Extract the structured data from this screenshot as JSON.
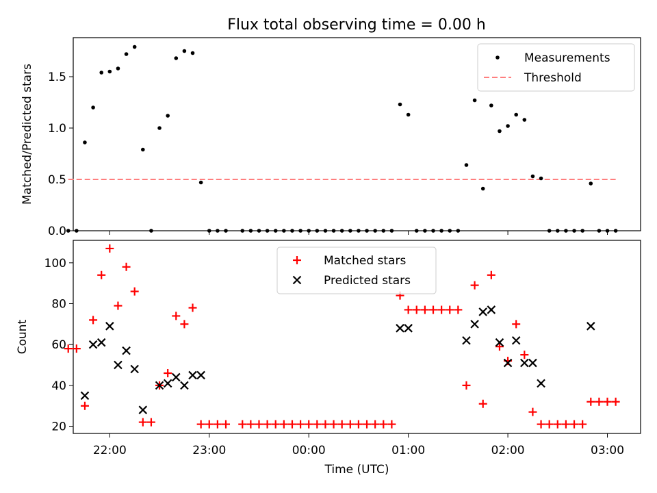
{
  "figure": {
    "title": "Flux total observing time = 0.00 h"
  },
  "chart_data": [
    {
      "type": "scatter",
      "panel": "top",
      "xlabel": "",
      "ylabel": "Matched/Predicted stars",
      "x_unit": "time (UTC)",
      "xlim": [
        "21:38",
        "03:20"
      ],
      "ylim": [
        0,
        1.88
      ],
      "yticks": [
        0.0,
        0.5,
        1.0,
        1.5
      ],
      "ytick_labels": [
        "0.0",
        "0.5",
        "1.0",
        "1.5"
      ],
      "xticks": [
        "22:00",
        "23:00",
        "00:00",
        "01:00",
        "02:00",
        "03:00"
      ],
      "grid": false,
      "legend": "top-right",
      "colors": {
        "measurements": "#000000",
        "threshold": "#ff7f7f"
      },
      "series": [
        {
          "name": "Measurements",
          "style": "dot",
          "points": [
            [
              "21:35",
              0.0
            ],
            [
              "21:40",
              0.0
            ],
            [
              "21:45",
              0.86
            ],
            [
              "21:50",
              1.2
            ],
            [
              "21:55",
              1.54
            ],
            [
              "22:00",
              1.55
            ],
            [
              "22:05",
              1.58
            ],
            [
              "22:10",
              1.72
            ],
            [
              "22:15",
              1.79
            ],
            [
              "22:20",
              0.79
            ],
            [
              "22:25",
              0.0
            ],
            [
              "22:30",
              1.0
            ],
            [
              "22:35",
              1.12
            ],
            [
              "22:40",
              1.68
            ],
            [
              "22:45",
              1.75
            ],
            [
              "22:50",
              1.73
            ],
            [
              "22:55",
              0.47
            ],
            [
              "23:00",
              0.0
            ],
            [
              "23:05",
              0.0
            ],
            [
              "23:10",
              0.0
            ],
            [
              "23:20",
              0.0
            ],
            [
              "23:25",
              0.0
            ],
            [
              "23:30",
              0.0
            ],
            [
              "23:35",
              0.0
            ],
            [
              "23:40",
              0.0
            ],
            [
              "23:45",
              0.0
            ],
            [
              "23:50",
              0.0
            ],
            [
              "23:55",
              0.0
            ],
            [
              "00:00",
              0.0
            ],
            [
              "00:05",
              0.0
            ],
            [
              "00:10",
              0.0
            ],
            [
              "00:15",
              0.0
            ],
            [
              "00:20",
              0.0
            ],
            [
              "00:25",
              0.0
            ],
            [
              "00:30",
              0.0
            ],
            [
              "00:35",
              0.0
            ],
            [
              "00:40",
              0.0
            ],
            [
              "00:45",
              0.0
            ],
            [
              "00:50",
              0.0
            ],
            [
              "00:55",
              1.23
            ],
            [
              "01:00",
              1.13
            ],
            [
              "01:05",
              0.0
            ],
            [
              "01:10",
              0.0
            ],
            [
              "01:15",
              0.0
            ],
            [
              "01:20",
              0.0
            ],
            [
              "01:25",
              0.0
            ],
            [
              "01:30",
              0.0
            ],
            [
              "01:35",
              0.64
            ],
            [
              "01:40",
              1.27
            ],
            [
              "01:45",
              0.41
            ],
            [
              "01:50",
              1.22
            ],
            [
              "01:55",
              0.97
            ],
            [
              "02:00",
              1.02
            ],
            [
              "02:05",
              1.13
            ],
            [
              "02:10",
              1.08
            ],
            [
              "02:15",
              0.53
            ],
            [
              "02:20",
              0.51
            ],
            [
              "02:25",
              0.0
            ],
            [
              "02:30",
              0.0
            ],
            [
              "02:35",
              0.0
            ],
            [
              "02:40",
              0.0
            ],
            [
              "02:45",
              0.0
            ],
            [
              "02:50",
              0.46
            ],
            [
              "02:55",
              0.0
            ],
            [
              "03:00",
              0.0
            ],
            [
              "03:05",
              0.0
            ]
          ]
        },
        {
          "name": "Threshold",
          "style": "dashed-line",
          "points": [
            [
              "21:35",
              0.5
            ],
            [
              "03:05",
              0.5
            ]
          ]
        }
      ]
    },
    {
      "type": "scatter",
      "panel": "bottom",
      "xlabel": "Time (UTC)",
      "ylabel": "Count",
      "x_unit": "time (UTC)",
      "xlim": [
        "21:38",
        "03:20"
      ],
      "ylim": [
        16.5,
        111
      ],
      "yticks": [
        20,
        40,
        60,
        80,
        100
      ],
      "xticks": [
        "22:00",
        "23:00",
        "00:00",
        "01:00",
        "02:00",
        "03:00"
      ],
      "xtick_labels": [
        "22:00",
        "23:00",
        "00:00",
        "01:00",
        "02:00",
        "03:00"
      ],
      "grid": false,
      "legend": "top-center",
      "colors": {
        "matched": "#ff0000",
        "predicted": "#000000"
      },
      "series": [
        {
          "name": "Matched stars",
          "style": "plus",
          "points": [
            [
              "21:35",
              58
            ],
            [
              "21:40",
              58
            ],
            [
              "21:45",
              30
            ],
            [
              "21:50",
              72
            ],
            [
              "21:55",
              94
            ],
            [
              "22:00",
              107
            ],
            [
              "22:05",
              79
            ],
            [
              "22:10",
              98
            ],
            [
              "22:15",
              86
            ],
            [
              "22:20",
              22
            ],
            [
              "22:25",
              22
            ],
            [
              "22:30",
              40
            ],
            [
              "22:35",
              46
            ],
            [
              "22:40",
              74
            ],
            [
              "22:45",
              70
            ],
            [
              "22:50",
              78
            ],
            [
              "22:55",
              21
            ],
            [
              "23:00",
              21
            ],
            [
              "23:05",
              21
            ],
            [
              "23:10",
              21
            ],
            [
              "23:20",
              21
            ],
            [
              "23:25",
              21
            ],
            [
              "23:30",
              21
            ],
            [
              "23:35",
              21
            ],
            [
              "23:40",
              21
            ],
            [
              "23:45",
              21
            ],
            [
              "23:50",
              21
            ],
            [
              "23:55",
              21
            ],
            [
              "00:00",
              21
            ],
            [
              "00:05",
              21
            ],
            [
              "00:10",
              21
            ],
            [
              "00:15",
              21
            ],
            [
              "00:20",
              21
            ],
            [
              "00:25",
              21
            ],
            [
              "00:30",
              21
            ],
            [
              "00:35",
              21
            ],
            [
              "00:40",
              21
            ],
            [
              "00:45",
              21
            ],
            [
              "00:50",
              21
            ],
            [
              "00:55",
              84
            ],
            [
              "01:00",
              77
            ],
            [
              "01:05",
              77
            ],
            [
              "01:10",
              77
            ],
            [
              "01:15",
              77
            ],
            [
              "01:20",
              77
            ],
            [
              "01:25",
              77
            ],
            [
              "01:30",
              77
            ],
            [
              "01:35",
              40
            ],
            [
              "01:40",
              89
            ],
            [
              "01:45",
              31
            ],
            [
              "01:50",
              94
            ],
            [
              "01:55",
              59
            ],
            [
              "02:00",
              52
            ],
            [
              "02:05",
              70
            ],
            [
              "02:10",
              55
            ],
            [
              "02:15",
              27
            ],
            [
              "02:20",
              21
            ],
            [
              "02:25",
              21
            ],
            [
              "02:30",
              21
            ],
            [
              "02:35",
              21
            ],
            [
              "02:40",
              21
            ],
            [
              "02:45",
              21
            ],
            [
              "02:50",
              32
            ],
            [
              "02:55",
              32
            ],
            [
              "03:00",
              32
            ],
            [
              "03:05",
              32
            ]
          ]
        },
        {
          "name": "Predicted stars",
          "style": "x",
          "points": [
            [
              "21:45",
              35
            ],
            [
              "21:50",
              60
            ],
            [
              "21:55",
              61
            ],
            [
              "22:00",
              69
            ],
            [
              "22:05",
              50
            ],
            [
              "22:10",
              57
            ],
            [
              "22:15",
              48
            ],
            [
              "22:20",
              28
            ],
            [
              "22:30",
              40
            ],
            [
              "22:35",
              41
            ],
            [
              "22:40",
              44
            ],
            [
              "22:45",
              40
            ],
            [
              "22:50",
              45
            ],
            [
              "22:55",
              45
            ],
            [
              "00:55",
              68
            ],
            [
              "01:00",
              68
            ],
            [
              "01:35",
              62
            ],
            [
              "01:40",
              70
            ],
            [
              "01:45",
              76
            ],
            [
              "01:50",
              77
            ],
            [
              "01:55",
              61
            ],
            [
              "02:00",
              51
            ],
            [
              "02:05",
              62
            ],
            [
              "02:10",
              51
            ],
            [
              "02:15",
              51
            ],
            [
              "02:20",
              41
            ],
            [
              "02:50",
              69
            ]
          ]
        }
      ]
    }
  ]
}
